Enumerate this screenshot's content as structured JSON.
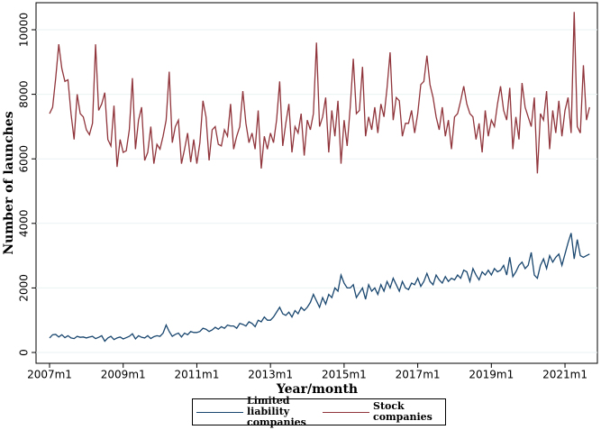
{
  "chart_data": {
    "type": "line",
    "y_label": "Number of launches",
    "x_label": "Year/month",
    "categories": [
      "2007m1",
      null,
      null,
      null,
      null,
      null,
      null,
      null,
      null,
      null,
      null,
      null,
      null,
      null,
      null,
      null,
      null,
      null,
      null,
      null,
      null,
      null,
      null,
      null,
      "2009m1",
      null,
      null,
      null,
      null,
      null,
      null,
      null,
      null,
      null,
      null,
      null,
      null,
      null,
      null,
      null,
      null,
      null,
      null,
      null,
      null,
      null,
      null,
      null,
      "2011m1",
      null,
      null,
      null,
      null,
      null,
      null,
      null,
      null,
      null,
      null,
      null,
      null,
      null,
      null,
      null,
      null,
      null,
      null,
      null,
      null,
      null,
      null,
      null,
      "2013m1",
      null,
      null,
      null,
      null,
      null,
      null,
      null,
      null,
      null,
      null,
      null,
      null,
      null,
      null,
      null,
      null,
      null,
      null,
      null,
      null,
      null,
      null,
      null,
      "2015m1",
      null,
      null,
      null,
      null,
      null,
      null,
      null,
      null,
      null,
      null,
      null,
      null,
      null,
      null,
      null,
      null,
      null,
      null,
      null,
      null,
      null,
      null,
      null,
      "2017m1",
      null,
      null,
      null,
      null,
      null,
      null,
      null,
      null,
      null,
      null,
      null,
      null,
      null,
      null,
      null,
      null,
      null,
      null,
      null,
      null,
      null,
      null,
      null,
      "2019m1",
      null,
      null,
      null,
      null,
      null,
      null,
      null,
      null,
      null,
      null,
      null,
      null,
      null,
      null,
      null,
      null,
      null,
      null,
      null,
      null,
      null,
      null,
      null,
      "2021m1",
      null,
      null,
      null,
      null,
      null,
      null,
      null,
      null
    ],
    "series": [
      {
        "name": "Limited liability companies",
        "color": "#1a476f",
        "values": [
          450,
          550,
          560,
          480,
          550,
          460,
          520,
          450,
          430,
          500,
          470,
          480,
          450,
          480,
          500,
          430,
          470,
          520,
          350,
          450,
          500,
          400,
          450,
          480,
          420,
          460,
          500,
          580,
          420,
          520,
          470,
          450,
          520,
          430,
          490,
          520,
          500,
          600,
          850,
          650,
          500,
          560,
          600,
          480,
          600,
          550,
          650,
          620,
          620,
          650,
          750,
          720,
          650,
          700,
          780,
          720,
          800,
          750,
          850,
          820,
          820,
          750,
          900,
          870,
          820,
          950,
          900,
          800,
          1000,
          950,
          1100,
          1000,
          1000,
          1100,
          1250,
          1400,
          1200,
          1150,
          1250,
          1100,
          1300,
          1200,
          1400,
          1300,
          1400,
          1550,
          1800,
          1600,
          1400,
          1700,
          1500,
          1800,
          1700,
          2000,
          1900,
          2400,
          2150,
          2000,
          2000,
          2100,
          1700,
          1850,
          2000,
          1650,
          2100,
          1900,
          2000,
          1800,
          2100,
          1900,
          2200,
          2000,
          2300,
          2100,
          1900,
          2200,
          2000,
          1950,
          2150,
          2100,
          2300,
          2050,
          2200,
          2450,
          2200,
          2100,
          2400,
          2250,
          2150,
          2350,
          2200,
          2300,
          2250,
          2400,
          2300,
          2550,
          2500,
          2200,
          2600,
          2400,
          2250,
          2500,
          2400,
          2550,
          2400,
          2600,
          2500,
          2550,
          2700,
          2400,
          2950,
          2350,
          2500,
          2700,
          2800,
          2600,
          2700,
          3100,
          2400,
          2300,
          2700,
          2900,
          2600,
          3000,
          2800,
          2950,
          3050,
          2700,
          3050,
          3400,
          3700,
          2900,
          3500,
          3000,
          2950,
          3000,
          3050
        ]
      },
      {
        "name": "Stock companies",
        "color": "#90353b",
        "values": [
          7400,
          7600,
          8500,
          9550,
          8800,
          8400,
          8450,
          7400,
          6600,
          8000,
          7400,
          7300,
          6900,
          6750,
          7100,
          9550,
          7500,
          7700,
          8050,
          6600,
          6400,
          7650,
          5750,
          6600,
          6200,
          6250,
          6900,
          8500,
          6300,
          7200,
          7600,
          5950,
          6200,
          7000,
          5850,
          6450,
          6300,
          6700,
          7200,
          8700,
          6500,
          7000,
          7200,
          5850,
          6300,
          6800,
          5900,
          6600,
          5850,
          6500,
          7800,
          7300,
          5950,
          6900,
          7000,
          6450,
          6400,
          6900,
          6700,
          7700,
          6300,
          6700,
          7000,
          8100,
          7100,
          6500,
          6800,
          6300,
          7500,
          5700,
          6700,
          6300,
          6800,
          6500,
          7200,
          8400,
          6400,
          7100,
          7700,
          6200,
          7000,
          6800,
          7400,
          6100,
          7200,
          6900,
          7400,
          9600,
          7000,
          7300,
          7900,
          6200,
          7500,
          6700,
          7800,
          5850,
          7200,
          6400,
          7600,
          9100,
          7400,
          7500,
          8850,
          6700,
          7300,
          6900,
          7600,
          6800,
          7700,
          7300,
          8200,
          9300,
          7200,
          7900,
          7800,
          6700,
          7100,
          7100,
          7500,
          6800,
          7400,
          8300,
          8400,
          9200,
          8300,
          7900,
          7300,
          6900,
          7600,
          6700,
          7200,
          6300,
          7300,
          7400,
          7800,
          8250,
          7700,
          7400,
          7300,
          6600,
          7100,
          6200,
          7500,
          6700,
          7200,
          7000,
          7700,
          8250,
          7500,
          7200,
          8200,
          6300,
          7300,
          6600,
          8350,
          7600,
          7300,
          7000,
          7900,
          5550,
          7400,
          7200,
          8100,
          6300,
          7500,
          6800,
          7800,
          6700,
          7500,
          7900,
          6800,
          10550,
          7000,
          6800,
          8900,
          7200,
          7600
        ]
      }
    ],
    "ylim": [
      -335,
      10838
    ],
    "yticks": [
      0,
      2000,
      4000,
      6000,
      8000,
      10000
    ],
    "grid": true
  }
}
